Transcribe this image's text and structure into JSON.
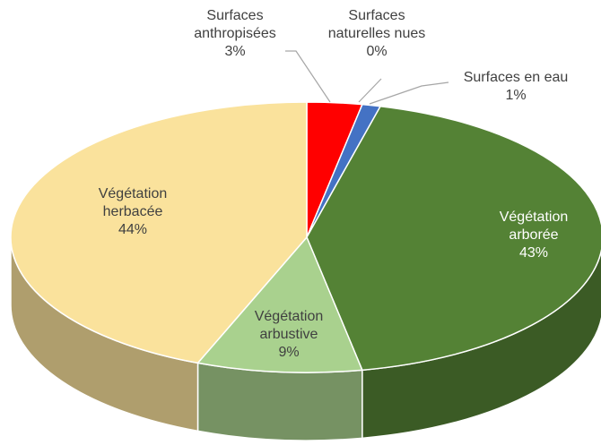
{
  "chart_data": {
    "type": "pie",
    "categories": [
      "Surfaces anthropisées",
      "Surfaces naturelles nues",
      "Surfaces en eau",
      "Végétation arborée",
      "Végétation arbustive",
      "Végétation herbacée"
    ],
    "values": [
      3,
      0,
      1,
      43,
      9,
      44
    ],
    "value_labels": [
      "3%",
      "0%",
      "1%",
      "43%",
      "9%",
      "44%"
    ],
    "colors": [
      "#ff0000",
      "#a5a5a5",
      "#4472c4",
      "#548235",
      "#a9d18e",
      "#fae29c"
    ]
  }
}
